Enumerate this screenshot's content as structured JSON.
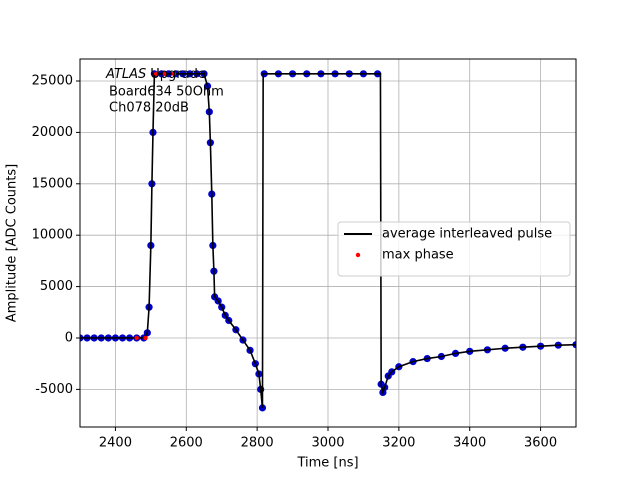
{
  "chart_data": {
    "type": "line",
    "xlabel": "Time [ns]",
    "ylabel": "Amplitude [ADC Counts]",
    "annotation": [
      "ATLAS",
      "Upgrade",
      "Board634 50Ohm",
      "Ch078 20dB"
    ],
    "xlim": [
      2300,
      3700
    ],
    "xticks": [
      2400,
      2600,
      2800,
      3000,
      3200,
      3400,
      3600
    ],
    "ylim": [
      -8660,
      27140
    ],
    "yticks": [
      -5000,
      0,
      5000,
      10000,
      15000,
      20000,
      25000
    ],
    "grid": true,
    "legend": "center right",
    "series": [
      {
        "style": "scatter",
        "color": "#0000cc",
        "x": [
          2300,
          2320,
          2340,
          2360,
          2380,
          2400,
          2420,
          2440,
          2460,
          2480,
          2490,
          2495,
          2500,
          2503,
          2506,
          2510,
          2530,
          2550,
          2570,
          2590,
          2610,
          2630,
          2650,
          2660,
          2665,
          2668,
          2672,
          2675,
          2678,
          2680,
          2690,
          2700,
          2710,
          2720,
          2740,
          2760,
          2780,
          2795,
          2805,
          2810,
          2815,
          2820,
          2860,
          2900,
          2940,
          2980,
          3020,
          3060,
          3100,
          3140,
          3150,
          3155,
          3160,
          3170,
          3180,
          3200,
          3240,
          3280,
          3320,
          3360,
          3400,
          3450,
          3500,
          3550,
          3600,
          3650,
          3700
        ],
        "values": [
          0,
          0,
          0,
          0,
          0,
          0,
          0,
          0,
          0,
          0,
          500,
          3000,
          9000,
          15000,
          20000,
          25700,
          25700,
          25700,
          25700,
          25700,
          25700,
          25700,
          25700,
          24500,
          22000,
          19000,
          14000,
          9000,
          6500,
          4000,
          3600,
          3000,
          2200,
          1700,
          800,
          -200,
          -1200,
          -2500,
          -3500,
          -5000,
          -6800,
          25700,
          25700,
          25700,
          25700,
          25700,
          25700,
          25700,
          25700,
          25700,
          -4500,
          -5300,
          -4800,
          -3700,
          -3300,
          -2800,
          -2300,
          -2000,
          -1800,
          -1500,
          -1300,
          -1150,
          -1000,
          -900,
          -800,
          -700,
          -650
        ]
      },
      {
        "name": "average interleaved pulse",
        "style": "line",
        "color": "#000000",
        "x": [
          2300,
          2480,
          2490,
          2495,
          2500,
          2503,
          2506,
          2510,
          2650,
          2660,
          2665,
          2668,
          2672,
          2675,
          2678,
          2680,
          2690,
          2700,
          2710,
          2720,
          2740,
          2760,
          2780,
          2795,
          2805,
          2810,
          2815,
          2817,
          3148,
          3150,
          3155,
          3160,
          3170,
          3180,
          3200,
          3240,
          3280,
          3320,
          3360,
          3400,
          3450,
          3500,
          3550,
          3600,
          3650,
          3700
        ],
        "values": [
          0,
          0,
          500,
          3000,
          9000,
          15000,
          20000,
          25700,
          25700,
          24500,
          22000,
          19000,
          14000,
          9000,
          6500,
          4000,
          3600,
          3000,
          2200,
          1700,
          800,
          -200,
          -1200,
          -2500,
          -3500,
          -5000,
          -6800,
          25700,
          25700,
          -4500,
          -5300,
          -4800,
          -3700,
          -3300,
          -2800,
          -2300,
          -2000,
          -1800,
          -1500,
          -1300,
          -1150,
          -1000,
          -900,
          -800,
          -700,
          -650
        ]
      },
      {
        "name": "max phase",
        "style": "scatter",
        "color": "#ff0000",
        "x": [
          2460,
          2485,
          2515,
          2540,
          2565
        ],
        "values": [
          0,
          0,
          25700,
          25700,
          25700
        ]
      }
    ]
  }
}
